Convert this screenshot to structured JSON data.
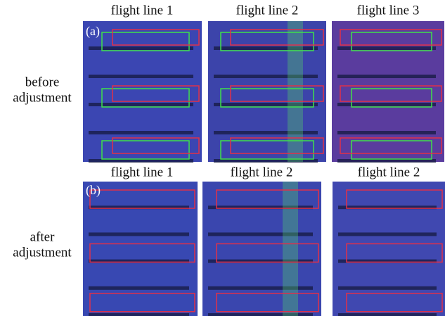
{
  "rows": [
    {
      "label_lines": [
        "before",
        "adjustment"
      ],
      "panel_label": "(a)",
      "columns": [
        "flight line 1",
        "flight line 2",
        "flight line 3"
      ]
    },
    {
      "label_lines": [
        "after",
        "adjustment"
      ],
      "panel_label": "(b)",
      "columns": [
        "flight line 1",
        "flight line 2",
        "flight line 2"
      ]
    }
  ]
}
